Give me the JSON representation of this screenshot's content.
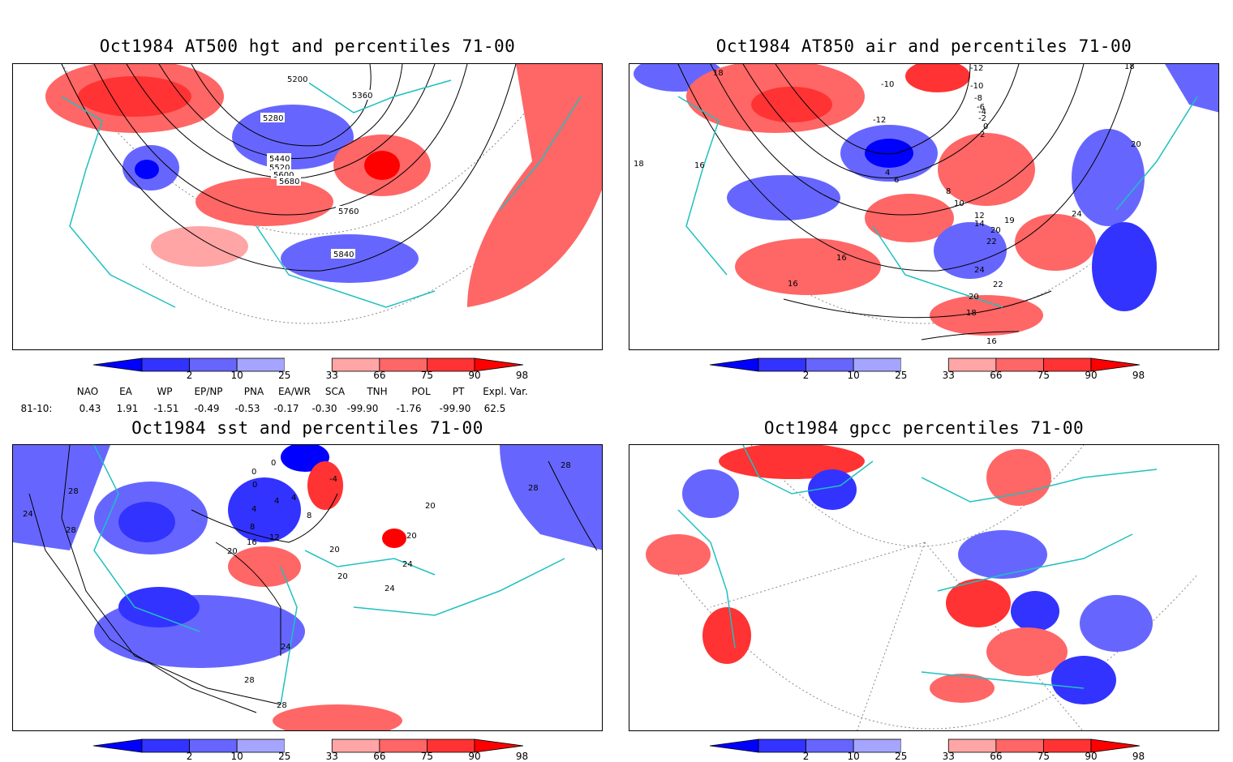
{
  "panels": [
    {
      "id": "hgt",
      "title": "Oct1984 AT500 hgt and percentiles 71-00",
      "contour_labels": [
        "5200",
        "5360",
        "5280",
        "5440",
        "5520",
        "5600",
        "5680",
        "5760",
        "5840"
      ]
    },
    {
      "id": "air",
      "title": "Oct1984 AT850 air and percentiles 71-00",
      "contour_labels": [
        "18",
        "-12",
        "-10",
        "-10",
        "-8",
        "-6",
        "-4",
        "-2",
        "0",
        "2",
        "4",
        "6",
        "8",
        "10",
        "12",
        "14",
        "16",
        "16",
        "16",
        "18",
        "18",
        "19",
        "20",
        "20",
        "20",
        "22",
        "22",
        "24",
        "24",
        "-12",
        "18",
        "16"
      ]
    },
    {
      "id": "sst",
      "title": "Oct1984 sst and percentiles 71-00",
      "contour_labels": [
        "28",
        "28",
        "24",
        "28",
        "0",
        "0",
        "0",
        "4",
        "4",
        "4",
        "8",
        "8",
        "12",
        "16",
        "20",
        "20",
        "20",
        "24",
        "24",
        "24",
        "28",
        "28",
        "28",
        "-4",
        "20",
        "20"
      ]
    },
    {
      "id": "gpcc",
      "title": "Oct1984 gpcc percentiles 71-00",
      "contour_labels": []
    }
  ],
  "colorbar": {
    "labels": [
      "2",
      "10",
      "25",
      "33",
      "66",
      "75",
      "90",
      "98"
    ],
    "colors": [
      "#0000ff",
      "#3333ff",
      "#6666ff",
      "#a5a5ff",
      "#ffffff",
      "#ffa5a5",
      "#ff6666",
      "#ff3333",
      "#ff0000"
    ]
  },
  "indices": {
    "headers": [
      "NAO",
      "EA",
      "WP",
      "EP/NP",
      "PNA",
      "EA/WR",
      "SCA",
      "TNH",
      "POL",
      "PT",
      "Expl. Var."
    ],
    "row_label": "81-10:",
    "values": [
      "0.43",
      "1.91",
      "-1.51",
      "-0.49",
      "-0.53",
      "-0.17",
      "-0.30",
      "-99.90",
      "-1.76",
      "-99.90",
      "62.5"
    ]
  }
}
